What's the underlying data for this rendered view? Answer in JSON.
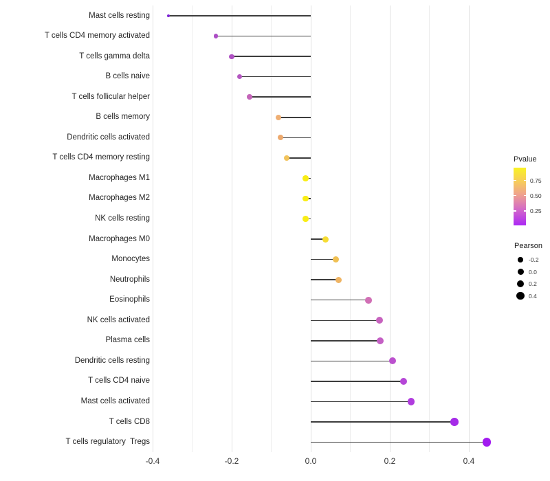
{
  "figure": {
    "background": "#ffffff",
    "colors": {
      "axis_text": "#333333",
      "category_text": "#262626",
      "grid_major": "#e2e2e2",
      "grid_minor": "#ededed",
      "stem": "#3c3c3c"
    }
  },
  "chart_data": {
    "type": "scatter",
    "variant": "horizontal-lollipop",
    "title": "",
    "xlabel": "",
    "ylabel": "",
    "xlim": [
      -0.45,
      0.47
    ],
    "x_ticks": [
      -0.4,
      -0.2,
      0.0,
      0.2,
      0.4
    ],
    "x_tick_labels": [
      "-0.4",
      "-0.2",
      "0.0",
      "0.2",
      "0.4"
    ],
    "grid": "vertical gridlines every 0.1, no horizontal gridlines",
    "legend_position": "right",
    "categories": [
      "Mast cells resting",
      "T cells CD4 memory activated",
      "T cells gamma delta",
      "B cells naive",
      "T cells follicular helper",
      "B cells memory",
      "Dendritic cells activated",
      "T cells CD4 memory resting",
      "Macrophages M1",
      "Macrophages M2",
      "NK cells resting",
      "Macrophages M0",
      "Monocytes",
      "Neutrophils",
      "Eosinophils",
      "NK cells activated",
      "Plasma cells",
      "Dendritic cells resting",
      "T cells CD4 naive",
      "Mast cells activated",
      "T cells CD8",
      "T cells regulatory  Tregs"
    ],
    "rows": [
      {
        "label": "Mast cells resting",
        "pearson": -0.36,
        "pvalue": 0.01,
        "color": "#7b22d3",
        "size": 4.0
      },
      {
        "label": "T cells CD4 memory activated",
        "pearson": -0.24,
        "pvalue": 0.18,
        "color": "#ac4ec5",
        "size": 6.8
      },
      {
        "label": "T cells gamma delta",
        "pearson": -0.2,
        "pvalue": 0.2,
        "color": "#af51c3",
        "size": 7.2
      },
      {
        "label": "B cells naive",
        "pearson": -0.18,
        "pvalue": 0.24,
        "color": "#b458c1",
        "size": 7.4
      },
      {
        "label": "T cells follicular helper",
        "pearson": -0.155,
        "pvalue": 0.3,
        "color": "#c465b9",
        "size": 7.6
      },
      {
        "label": "B cells memory",
        "pearson": -0.082,
        "pvalue": 0.6,
        "color": "#efaf74",
        "size": 8.2
      },
      {
        "label": "Dendritic cells activated",
        "pearson": -0.077,
        "pvalue": 0.58,
        "color": "#eda96d",
        "size": 8.2
      },
      {
        "label": "T cells CD4 memory resting",
        "pearson": -0.061,
        "pvalue": 0.72,
        "color": "#f2c45c",
        "size": 8.4
      },
      {
        "label": "Macrophages M1",
        "pearson": -0.013,
        "pvalue": 0.92,
        "color": "#f9ed15",
        "size": 8.7
      },
      {
        "label": "Macrophages M2",
        "pearson": -0.013,
        "pvalue": 0.92,
        "color": "#f9ed15",
        "size": 8.7
      },
      {
        "label": "NK cells resting",
        "pearson": -0.013,
        "pvalue": 0.92,
        "color": "#f9ed15",
        "size": 8.7
      },
      {
        "label": "Macrophages M0",
        "pearson": 0.037,
        "pvalue": 0.85,
        "color": "#f6dc33",
        "size": 9.0
      },
      {
        "label": "Monocytes",
        "pearson": 0.063,
        "pvalue": 0.72,
        "color": "#f0c053",
        "size": 9.2
      },
      {
        "label": "Neutrophils",
        "pearson": 0.071,
        "pvalue": 0.65,
        "color": "#efb463",
        "size": 9.3
      },
      {
        "label": "Eosinophils",
        "pearson": 0.146,
        "pvalue": 0.38,
        "color": "#d16fb5",
        "size": 9.8
      },
      {
        "label": "NK cells activated",
        "pearson": 0.174,
        "pvalue": 0.28,
        "color": "#c763be",
        "size": 10.0
      },
      {
        "label": "Plasma cells",
        "pearson": 0.176,
        "pvalue": 0.27,
        "color": "#c45fc4",
        "size": 10.0
      },
      {
        "label": "Dendritic cells resting",
        "pearson": 0.207,
        "pvalue": 0.22,
        "color": "#bb50ce",
        "size": 10.3
      },
      {
        "label": "T cells CD4 naive",
        "pearson": 0.235,
        "pvalue": 0.17,
        "color": "#b546d7",
        "size": 10.6
      },
      {
        "label": "Mast cells activated",
        "pearson": 0.254,
        "pvalue": 0.14,
        "color": "#b03cde",
        "size": 10.7
      },
      {
        "label": "T cells CD8",
        "pearson": 0.363,
        "pvalue": 0.07,
        "color": "#a52be8",
        "size": 11.6
      },
      {
        "label": "T cells regulatory  Tregs",
        "pearson": 0.445,
        "pvalue": 0.03,
        "color": "#a21bf0",
        "size": 12.5
      }
    ],
    "color_legend": {
      "title": "Pvalue",
      "tick_labels": [
        "0.75",
        "0.50",
        "0.25"
      ],
      "tick_values": [
        0.75,
        0.5,
        0.25
      ],
      "domain": [
        0.96,
        0.01
      ],
      "gradient_top_to_bottom": [
        "#f9f224",
        "#f7ce58",
        "#efa18f",
        "#d268c9",
        "#ac28f5"
      ]
    },
    "size_legend": {
      "title": "Pearson",
      "items": [
        {
          "label": "-0.2",
          "size": 7.5
        },
        {
          "label": "0.0",
          "size": 9.0
        },
        {
          "label": "0.2",
          "size": 10.3
        },
        {
          "label": "0.4",
          "size": 11.6
        }
      ]
    }
  }
}
